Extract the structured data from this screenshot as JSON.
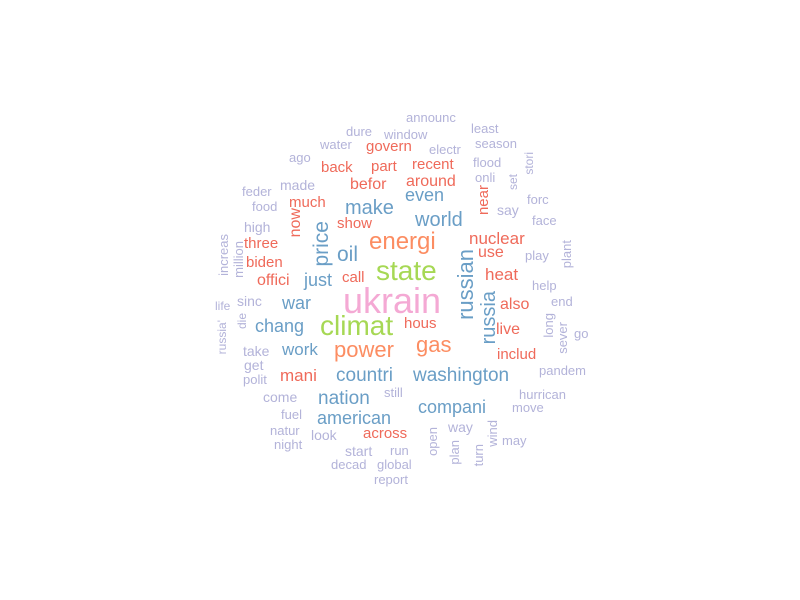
{
  "palette": {
    "pink": "#f4a9d4",
    "green": "#a6d854",
    "orange": "#fc8d62",
    "blue": "#6a9ec6",
    "red": "#ef6a5a",
    "lavender": "#b3b3d9"
  },
  "words": [
    {
      "text": "ukrain",
      "weight": 100,
      "color": "pink"
    },
    {
      "text": "climat",
      "weight": 78,
      "color": "green"
    },
    {
      "text": "state",
      "weight": 74,
      "color": "green"
    },
    {
      "text": "energi",
      "weight": 64,
      "color": "orange"
    },
    {
      "text": "power",
      "weight": 60,
      "color": "orange"
    },
    {
      "text": "gas",
      "weight": 58,
      "color": "orange"
    },
    {
      "text": "russian",
      "weight": 52,
      "color": "blue"
    },
    {
      "text": "russia",
      "weight": 50,
      "color": "blue"
    },
    {
      "text": "oil",
      "weight": 48,
      "color": "blue"
    },
    {
      "text": "price",
      "weight": 48,
      "color": "blue"
    },
    {
      "text": "make",
      "weight": 45,
      "color": "blue"
    },
    {
      "text": "world",
      "weight": 45,
      "color": "blue"
    },
    {
      "text": "countri",
      "weight": 44,
      "color": "blue"
    },
    {
      "text": "washington",
      "weight": 44,
      "color": "blue"
    },
    {
      "text": "nation",
      "weight": 44,
      "color": "blue"
    },
    {
      "text": "compani",
      "weight": 42,
      "color": "blue"
    },
    {
      "text": "american",
      "weight": 42,
      "color": "blue"
    },
    {
      "text": "war",
      "weight": 42,
      "color": "blue"
    },
    {
      "text": "chang",
      "weight": 42,
      "color": "blue"
    },
    {
      "text": "just",
      "weight": 42,
      "color": "blue"
    },
    {
      "text": "even",
      "weight": 42,
      "color": "blue"
    },
    {
      "text": "work",
      "weight": 40,
      "color": "blue"
    },
    {
      "text": "nuclear",
      "weight": 38,
      "color": "red"
    },
    {
      "text": "heat",
      "weight": 38,
      "color": "red"
    },
    {
      "text": "mani",
      "weight": 38,
      "color": "red"
    },
    {
      "text": "use",
      "weight": 36,
      "color": "red"
    },
    {
      "text": "live",
      "weight": 36,
      "color": "red"
    },
    {
      "text": "also",
      "weight": 34,
      "color": "red"
    },
    {
      "text": "befor",
      "weight": 34,
      "color": "red"
    },
    {
      "text": "around",
      "weight": 34,
      "color": "red"
    },
    {
      "text": "offici",
      "weight": 34,
      "color": "red"
    },
    {
      "text": "now",
      "weight": 34,
      "color": "red"
    },
    {
      "text": "across",
      "weight": 32,
      "color": "red"
    },
    {
      "text": "includ",
      "weight": 32,
      "color": "red"
    },
    {
      "text": "hous",
      "weight": 32,
      "color": "red"
    },
    {
      "text": "call",
      "weight": 32,
      "color": "red"
    },
    {
      "text": "much",
      "weight": 32,
      "color": "red"
    },
    {
      "text": "biden",
      "weight": 32,
      "color": "red"
    },
    {
      "text": "three",
      "weight": 30,
      "color": "red"
    },
    {
      "text": "back",
      "weight": 30,
      "color": "red"
    },
    {
      "text": "part",
      "weight": 30,
      "color": "red"
    },
    {
      "text": "recent",
      "weight": 30,
      "color": "red"
    },
    {
      "text": "govern",
      "weight": 30,
      "color": "red"
    },
    {
      "text": "show",
      "weight": 30,
      "color": "red"
    },
    {
      "text": "near",
      "weight": 30,
      "color": "red"
    },
    {
      "text": "announc",
      "weight": 24,
      "color": "lavender"
    },
    {
      "text": "dure",
      "weight": 24,
      "color": "lavender"
    },
    {
      "text": "window",
      "weight": 24,
      "color": "lavender"
    },
    {
      "text": "least",
      "weight": 24,
      "color": "lavender"
    },
    {
      "text": "season",
      "weight": 24,
      "color": "lavender"
    },
    {
      "text": "water",
      "weight": 24,
      "color": "lavender"
    },
    {
      "text": "electr",
      "weight": 24,
      "color": "lavender"
    },
    {
      "text": "ago",
      "weight": 24,
      "color": "lavender"
    },
    {
      "text": "flood",
      "weight": 24,
      "color": "lavender"
    },
    {
      "text": "stori",
      "weight": 22,
      "color": "lavender"
    },
    {
      "text": "onli",
      "weight": 24,
      "color": "lavender"
    },
    {
      "text": "set",
      "weight": 22,
      "color": "lavender"
    },
    {
      "text": "made",
      "weight": 26,
      "color": "lavender"
    },
    {
      "text": "feder",
      "weight": 24,
      "color": "lavender"
    },
    {
      "text": "food",
      "weight": 24,
      "color": "lavender"
    },
    {
      "text": "say",
      "weight": 26,
      "color": "lavender"
    },
    {
      "text": "forc",
      "weight": 24,
      "color": "lavender"
    },
    {
      "text": "face",
      "weight": 24,
      "color": "lavender"
    },
    {
      "text": "high",
      "weight": 26,
      "color": "lavender"
    },
    {
      "text": "increas",
      "weight": 24,
      "color": "lavender"
    },
    {
      "text": "million",
      "weight": 24,
      "color": "lavender"
    },
    {
      "text": "play",
      "weight": 24,
      "color": "lavender"
    },
    {
      "text": "plant",
      "weight": 24,
      "color": "lavender"
    },
    {
      "text": "help",
      "weight": 24,
      "color": "lavender"
    },
    {
      "text": "end",
      "weight": 24,
      "color": "lavender"
    },
    {
      "text": "sinc",
      "weight": 26,
      "color": "lavender"
    },
    {
      "text": "life",
      "weight": 22,
      "color": "lavender"
    },
    {
      "text": "die",
      "weight": 22,
      "color": "lavender"
    },
    {
      "text": "long",
      "weight": 24,
      "color": "lavender"
    },
    {
      "text": "sever",
      "weight": 24,
      "color": "lavender"
    },
    {
      "text": "go",
      "weight": 24,
      "color": "lavender"
    },
    {
      "text": "russia'",
      "weight": 22,
      "color": "lavender"
    },
    {
      "text": "take",
      "weight": 26,
      "color": "lavender"
    },
    {
      "text": "get",
      "weight": 26,
      "color": "lavender"
    },
    {
      "text": "polit",
      "weight": 24,
      "color": "lavender"
    },
    {
      "text": "pandem",
      "weight": 24,
      "color": "lavender"
    },
    {
      "text": "come",
      "weight": 26,
      "color": "lavender"
    },
    {
      "text": "still",
      "weight": 24,
      "color": "lavender"
    },
    {
      "text": "hurrican",
      "weight": 24,
      "color": "lavender"
    },
    {
      "text": "move",
      "weight": 24,
      "color": "lavender"
    },
    {
      "text": "fuel",
      "weight": 24,
      "color": "lavender"
    },
    {
      "text": "way",
      "weight": 26,
      "color": "lavender"
    },
    {
      "text": "natur",
      "weight": 24,
      "color": "lavender"
    },
    {
      "text": "look",
      "weight": 26,
      "color": "lavender"
    },
    {
      "text": "wind",
      "weight": 24,
      "color": "lavender"
    },
    {
      "text": "may",
      "weight": 24,
      "color": "lavender"
    },
    {
      "text": "night",
      "weight": 24,
      "color": "lavender"
    },
    {
      "text": "open",
      "weight": 24,
      "color": "lavender"
    },
    {
      "text": "start",
      "weight": 26,
      "color": "lavender"
    },
    {
      "text": "run",
      "weight": 24,
      "color": "lavender"
    },
    {
      "text": "plan",
      "weight": 24,
      "color": "lavender"
    },
    {
      "text": "turn",
      "weight": 24,
      "color": "lavender"
    },
    {
      "text": "decad",
      "weight": 24,
      "color": "lavender"
    },
    {
      "text": "global",
      "weight": 24,
      "color": "lavender"
    },
    {
      "text": "report",
      "weight": 24,
      "color": "lavender"
    }
  ]
}
